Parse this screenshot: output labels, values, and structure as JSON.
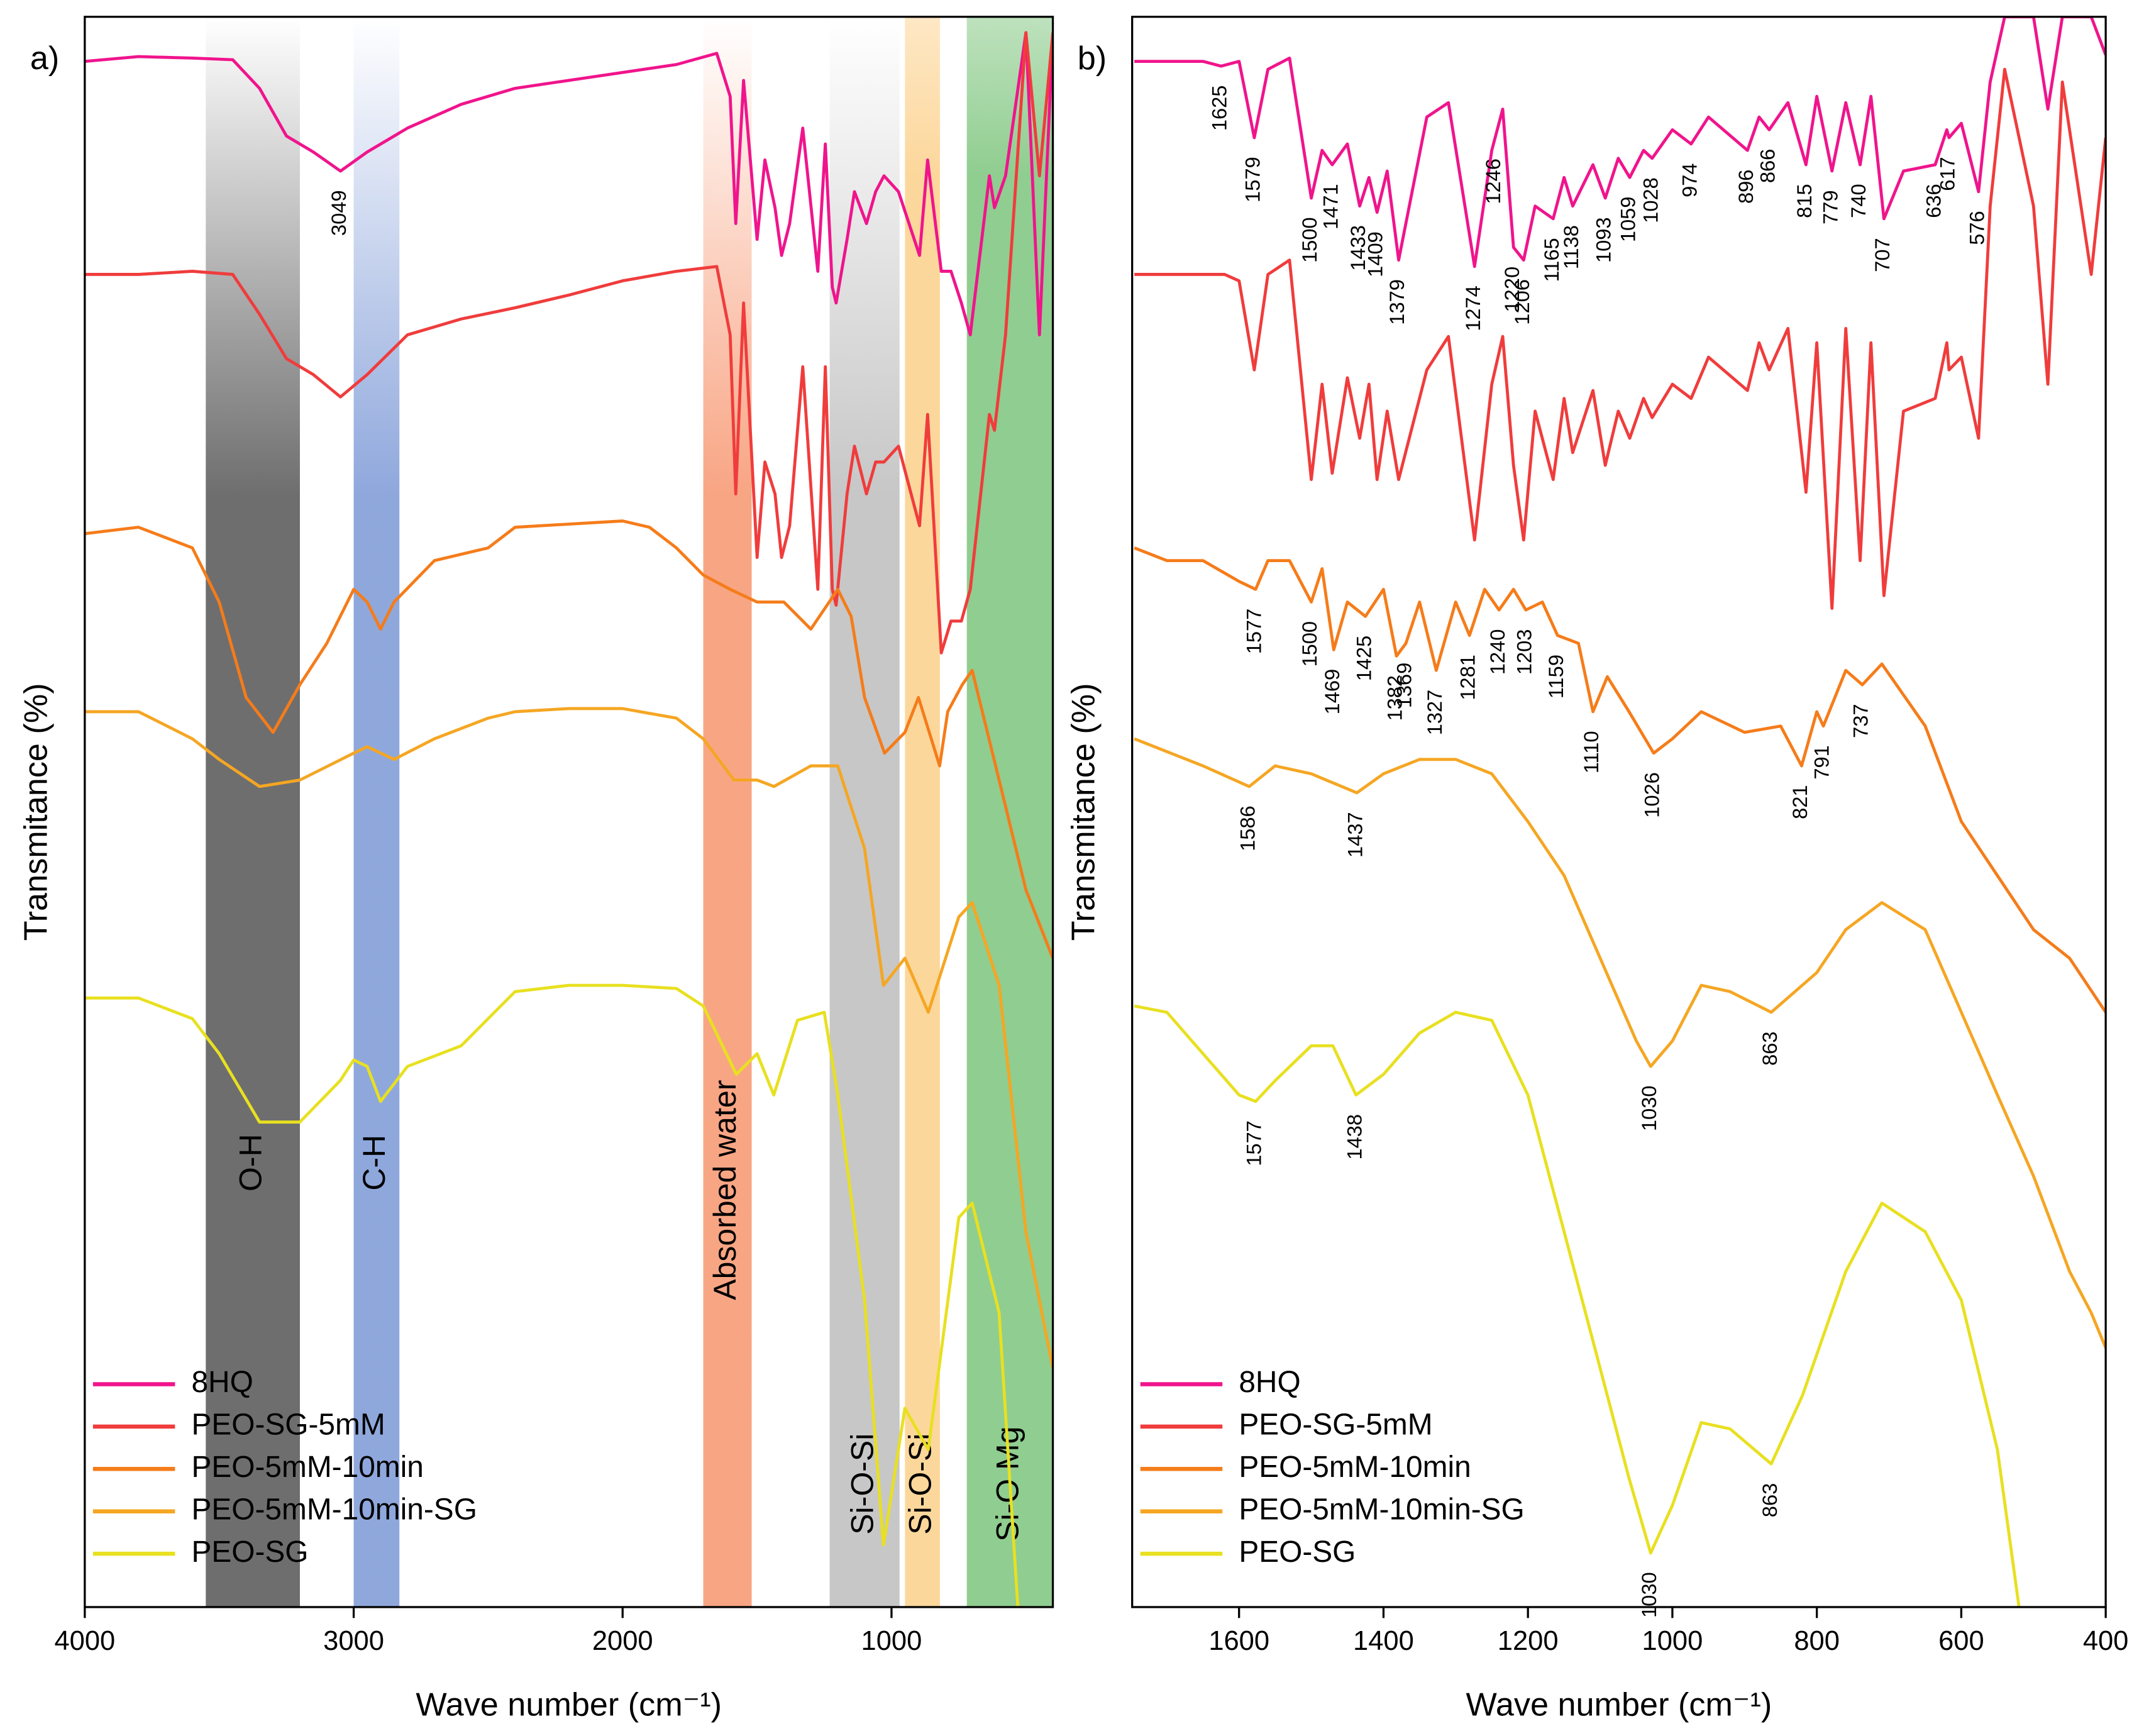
{
  "chart_data": [
    {
      "type": "line",
      "panel_label": "a)",
      "xlabel": "Wave number (cm⁻¹)",
      "ylabel": "Transmitance (%)",
      "xlim": [
        4000,
        400
      ],
      "ylim": [
        0,
        100
      ],
      "xticks": [
        4000,
        3000,
        2000,
        1000
      ],
      "legend": "lower left",
      "bands": [
        {
          "label": "O-H",
          "x": [
            3550,
            3200
          ],
          "color": "#555555"
        },
        {
          "label": "C-H",
          "x": [
            3000,
            2830
          ],
          "color": "#7b98d6"
        },
        {
          "label": "Absorbed water",
          "x": [
            1700,
            1520
          ],
          "color": "#f7956e"
        },
        {
          "label": "Si-O-Si",
          "x": [
            1230,
            970
          ],
          "color": "#bdbdbd"
        },
        {
          "label": "Si-O-Si",
          "x": [
            950,
            820
          ],
          "color": "#fcd08a"
        },
        {
          "label": "Si-O Mg",
          "x": [
            720,
            400
          ],
          "color": "#7cc47c"
        }
      ],
      "series": [
        {
          "name": "8HQ",
          "color": "#f0148c",
          "peaks": [
            3049
          ],
          "x": [
            4000,
            3800,
            3600,
            3450,
            3350,
            3250,
            3150,
            3049,
            2950,
            2800,
            2600,
            2400,
            2200,
            2000,
            1800,
            1650,
            1600,
            1579,
            1550,
            1500,
            1471,
            1433,
            1409,
            1379,
            1330,
            1274,
            1246,
            1220,
            1206,
            1165,
            1138,
            1093,
            1059,
            1028,
            974,
            896,
            866,
            815,
            779,
            740,
            707,
            636,
            617,
            576,
            500,
            450,
            400
          ],
          "values": [
            97.2,
            97.5,
            97.4,
            97.3,
            95.5,
            92.5,
            91.5,
            90.3,
            91.5,
            93,
            94.5,
            95.5,
            96,
            96.5,
            97,
            97.7,
            95,
            87,
            96,
            86,
            91,
            88,
            85,
            87,
            93,
            84,
            92,
            83,
            82,
            86,
            89,
            87,
            89,
            90,
            89,
            85,
            91,
            84,
            84,
            82,
            80,
            90,
            88,
            90,
            99,
            80,
            99
          ]
        },
        {
          "name": "PEO-SG-5mM",
          "color": "#f03c3c",
          "x": [
            4000,
            3800,
            3600,
            3450,
            3350,
            3250,
            3150,
            3049,
            2950,
            2800,
            2600,
            2400,
            2200,
            2000,
            1800,
            1650,
            1600,
            1579,
            1550,
            1500,
            1471,
            1433,
            1409,
            1379,
            1330,
            1274,
            1246,
            1220,
            1206,
            1165,
            1138,
            1093,
            1059,
            1028,
            974,
            896,
            866,
            815,
            779,
            740,
            707,
            636,
            617,
            576,
            500,
            450,
            400
          ],
          "values": [
            83.8,
            83.8,
            84,
            83.8,
            81.3,
            78.5,
            77.5,
            76.1,
            77.5,
            80,
            81,
            81.7,
            82.5,
            83.4,
            84,
            84.3,
            80,
            70,
            82,
            66,
            72,
            70,
            66,
            68,
            78,
            64,
            78,
            64,
            63,
            70,
            73,
            70,
            72,
            72,
            73,
            68,
            75,
            60,
            62,
            62,
            64,
            75,
            74,
            80,
            99,
            90,
            99
          ]
        },
        {
          "name": "PEO-5mM-10min",
          "color": "#f57c1a",
          "x": [
            4000,
            3800,
            3600,
            3500,
            3400,
            3300,
            3200,
            3100,
            3000,
            2950,
            2900,
            2850,
            2700,
            2500,
            2400,
            2000,
            1900,
            1800,
            1700,
            1600,
            1500,
            1400,
            1300,
            1200,
            1150,
            1100,
            1026,
            950,
            900,
            821,
            791,
            737,
            700,
            600,
            500,
            400
          ],
          "values": [
            67.5,
            67.9,
            66.6,
            63.2,
            57.2,
            55,
            58,
            60.6,
            64,
            63.2,
            61.5,
            63.2,
            65.8,
            66.6,
            67.9,
            68.3,
            67.9,
            66.6,
            64.9,
            64,
            63.2,
            63.2,
            61.5,
            64,
            62.3,
            57.2,
            53.7,
            55,
            57.2,
            52.9,
            56.3,
            58,
            58.9,
            52,
            45.1,
            40.8
          ]
        },
        {
          "name": "PEO-5mM-10min-SG",
          "color": "#f5a623",
          "x": [
            4000,
            3800,
            3600,
            3500,
            3350,
            3200,
            3000,
            2950,
            2850,
            2700,
            2500,
            2400,
            2200,
            2000,
            1800,
            1700,
            1586,
            1500,
            1437,
            1300,
            1200,
            1100,
            1030,
            950,
            863,
            750,
            700,
            600,
            500,
            400
          ],
          "values": [
            56.3,
            56.3,
            54.6,
            53.3,
            51.6,
            52,
            53.7,
            54.1,
            53.3,
            54.6,
            55.9,
            56.3,
            56.5,
            56.5,
            55.9,
            54.6,
            52,
            52,
            51.6,
            52.9,
            52.9,
            47.7,
            39.1,
            40.8,
            37.4,
            43.4,
            44.3,
            39.1,
            23.6,
            15
          ]
        },
        {
          "name": "PEO-SG",
          "color": "#e8e020",
          "x": [
            4000,
            3800,
            3600,
            3500,
            3350,
            3200,
            3050,
            3000,
            2950,
            2900,
            2800,
            2600,
            2400,
            2200,
            2000,
            1800,
            1700,
            1577,
            1500,
            1438,
            1350,
            1250,
            1200,
            1100,
            1030,
            950,
            863,
            750,
            700,
            600,
            530
          ],
          "values": [
            38.3,
            38.3,
            37,
            34.8,
            30.5,
            30.5,
            33.1,
            34.4,
            34,
            31.8,
            34,
            35.3,
            38.7,
            39.1,
            39.1,
            38.9,
            37.8,
            33.5,
            34.8,
            32.2,
            36.9,
            37.4,
            32.2,
            19.3,
            3.9,
            12.5,
            9.9,
            24.5,
            25.4,
            18.5,
            0
          ]
        }
      ]
    },
    {
      "type": "line",
      "panel_label": "b)",
      "xlabel": "Wave number (cm⁻¹)",
      "ylabel": "Transmitance (%)",
      "xlim": [
        1748,
        400
      ],
      "ylim": [
        0,
        100
      ],
      "xticks": [
        1600,
        1400,
        1200,
        1000,
        800,
        600,
        400
      ],
      "legend": "lower left",
      "series": [
        {
          "name": "8HQ",
          "color": "#f0148c",
          "peaks": [
            1625,
            1579,
            1500,
            1471,
            1433,
            1409,
            1379,
            1274,
            1246,
            1220,
            1206,
            1165,
            1138,
            1093,
            1059,
            1028,
            974,
            896,
            866,
            815,
            779,
            740,
            707,
            636,
            617,
            576
          ],
          "x": [
            1745,
            1650,
            1625,
            1600,
            1579,
            1560,
            1530,
            1500,
            1485,
            1471,
            1450,
            1433,
            1420,
            1409,
            1395,
            1379,
            1340,
            1310,
            1274,
            1250,
            1235,
            1220,
            1206,
            1190,
            1165,
            1150,
            1138,
            1110,
            1093,
            1075,
            1059,
            1040,
            1028,
            1000,
            974,
            950,
            896,
            880,
            866,
            840,
            815,
            800,
            779,
            760,
            740,
            725,
            707,
            680,
            636,
            620,
            617,
            600,
            576,
            560,
            540,
            500,
            480,
            460,
            420,
            400
          ],
          "values": [
            97.2,
            97.2,
            96.9,
            97.2,
            92.4,
            96.7,
            97.4,
            88.6,
            91.6,
            90.7,
            92,
            88.1,
            89.9,
            87.7,
            90.3,
            84.7,
            93.7,
            94.6,
            84.3,
            91.6,
            94.2,
            85.5,
            84.7,
            88.1,
            87.3,
            89.9,
            88.1,
            90.7,
            88.6,
            91.1,
            89.9,
            91.6,
            91.1,
            92.9,
            92,
            93.7,
            91.6,
            93.7,
            92.9,
            94.6,
            90.7,
            95,
            90.3,
            94.6,
            90.7,
            95,
            87.3,
            90.3,
            90.7,
            92.9,
            92.4,
            93.3,
            89,
            95.9,
            100,
            100,
            94.2,
            100,
            100,
            97.6
          ]
        },
        {
          "name": "PEO-SG-5mM",
          "color": "#f03c3c",
          "x": [
            1745,
            1620,
            1600,
            1579,
            1560,
            1530,
            1500,
            1485,
            1471,
            1450,
            1433,
            1420,
            1409,
            1395,
            1379,
            1340,
            1310,
            1274,
            1250,
            1235,
            1220,
            1206,
            1190,
            1165,
            1150,
            1138,
            1110,
            1093,
            1075,
            1059,
            1040,
            1028,
            1000,
            974,
            950,
            896,
            880,
            866,
            840,
            815,
            800,
            779,
            760,
            740,
            725,
            707,
            680,
            636,
            620,
            617,
            600,
            576,
            560,
            540,
            500,
            480,
            460,
            420,
            400
          ],
          "values": [
            83.8,
            83.8,
            83.4,
            77.8,
            83.8,
            84.7,
            70.9,
            76.9,
            71.3,
            77.3,
            73.5,
            76.9,
            70.9,
            75.2,
            70.9,
            77.8,
            79.9,
            67.1,
            76.9,
            79.9,
            71.8,
            67.1,
            75.2,
            70.9,
            76,
            72.6,
            76.5,
            71.8,
            75.2,
            73.5,
            76,
            74.8,
            76.9,
            76,
            78.6,
            76.5,
            79.5,
            77.8,
            80.4,
            70.1,
            79.5,
            62.8,
            80.4,
            65.8,
            79.5,
            63.6,
            75.2,
            76,
            79.5,
            77.8,
            78.6,
            73.5,
            88.1,
            96.7,
            88.1,
            76.9,
            95.9,
            83.8,
            92.4
          ]
        },
        {
          "name": "PEO-5mM-10min",
          "color": "#f57c1a",
          "peaks": [
            1577,
            1500,
            1469,
            1425,
            1382,
            1369,
            1327,
            1281,
            1240,
            1203,
            1159,
            1110,
            1026,
            821,
            791,
            737
          ],
          "x": [
            1745,
            1700,
            1650,
            1600,
            1577,
            1560,
            1530,
            1500,
            1485,
            1469,
            1450,
            1425,
            1400,
            1382,
            1369,
            1350,
            1327,
            1300,
            1281,
            1260,
            1240,
            1220,
            1203,
            1180,
            1159,
            1130,
            1110,
            1090,
            1060,
            1026,
            1000,
            960,
            900,
            850,
            821,
            800,
            791,
            760,
            737,
            710,
            650,
            600,
            500,
            450,
            400
          ],
          "values": [
            66.6,
            65.8,
            65.8,
            64.5,
            64,
            65.8,
            65.8,
            63.2,
            65.3,
            60.2,
            63.2,
            62.3,
            64,
            59.8,
            60.6,
            63.2,
            58.9,
            63.2,
            61.1,
            64,
            62.7,
            64,
            62.7,
            63.2,
            61.1,
            60.6,
            56.3,
            58.5,
            56.3,
            53.7,
            54.6,
            56.3,
            55,
            55.4,
            52.9,
            56.3,
            55.4,
            58.9,
            58,
            59.3,
            55.4,
            49.4,
            42.6,
            40.8,
            37.4
          ]
        },
        {
          "name": "PEO-5mM-10min-SG",
          "color": "#f5a623",
          "peaks": [
            1586,
            1437,
            1030,
            863
          ],
          "x": [
            1745,
            1650,
            1586,
            1550,
            1500,
            1437,
            1400,
            1350,
            1300,
            1250,
            1200,
            1150,
            1100,
            1050,
            1030,
            1000,
            960,
            920,
            863,
            800,
            760,
            710,
            650,
            600,
            550,
            500,
            450,
            420,
            400
          ],
          "values": [
            54.6,
            52.9,
            51.6,
            52.9,
            52.4,
            51.2,
            52.4,
            53.3,
            53.3,
            52.4,
            49.4,
            46,
            40.8,
            35.6,
            34,
            35.6,
            39.1,
            38.7,
            37.4,
            39.9,
            42.6,
            44.3,
            42.6,
            37.4,
            32.2,
            27.1,
            21.1,
            18.5,
            16.3
          ]
        },
        {
          "name": "PEO-SG",
          "color": "#e8e020",
          "peaks": [
            1577,
            1438,
            1030,
            863
          ],
          "x": [
            1745,
            1700,
            1650,
            1600,
            1577,
            1550,
            1500,
            1470,
            1438,
            1400,
            1350,
            1300,
            1250,
            1200,
            1150,
            1100,
            1060,
            1030,
            1000,
            960,
            920,
            863,
            820,
            760,
            710,
            650,
            600,
            550,
            520
          ],
          "values": [
            37.8,
            37.4,
            34.8,
            32.2,
            31.8,
            33.1,
            35.3,
            35.3,
            32.2,
            33.5,
            36.1,
            37.4,
            36.9,
            32.2,
            23.6,
            15,
            8.1,
            3.4,
            6.4,
            11.6,
            11.2,
            9,
            13.3,
            21.1,
            25.4,
            23.6,
            19.3,
            9.9,
            0
          ]
        }
      ]
    }
  ]
}
